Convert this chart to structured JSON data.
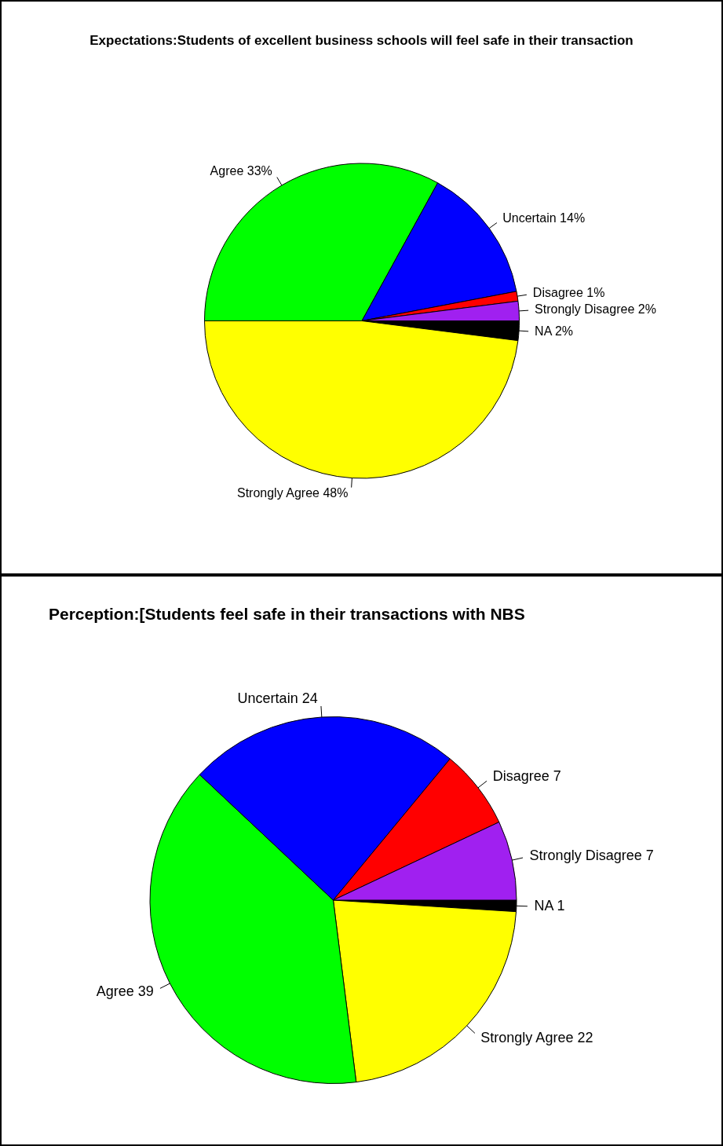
{
  "chart_data": [
    {
      "type": "pie",
      "title": "Expectations:Students of excellent business schools will feel safe in their transaction",
      "categories": [
        "NA",
        "Strongly Agree",
        "Agree",
        "Uncertain",
        "Disagree",
        "Strongly Disagree"
      ],
      "values": [
        2,
        48,
        33,
        14,
        1,
        2
      ],
      "value_labels": [
        "2%",
        "48%",
        "33%",
        "14%",
        "1%",
        "2%"
      ],
      "colors": [
        "#000000",
        "#ffff00",
        "#00ff00",
        "#0000ff",
        "#ff0000",
        "#a020f0"
      ],
      "legend": false
    },
    {
      "type": "pie",
      "title": "Perception:[Students feel safe in their transactions with NBS",
      "categories": [
        "NA",
        "Strongly Agree",
        "Agree",
        "Uncertain",
        "Disagree",
        "Strongly Disagree"
      ],
      "values": [
        1,
        22,
        39,
        24,
        7,
        7
      ],
      "value_labels": [
        "1",
        "22",
        "39",
        "24",
        "7",
        "7"
      ],
      "colors": [
        "#000000",
        "#ffff00",
        "#00ff00",
        "#0000ff",
        "#ff0000",
        "#a020f0"
      ],
      "legend": false
    }
  ]
}
